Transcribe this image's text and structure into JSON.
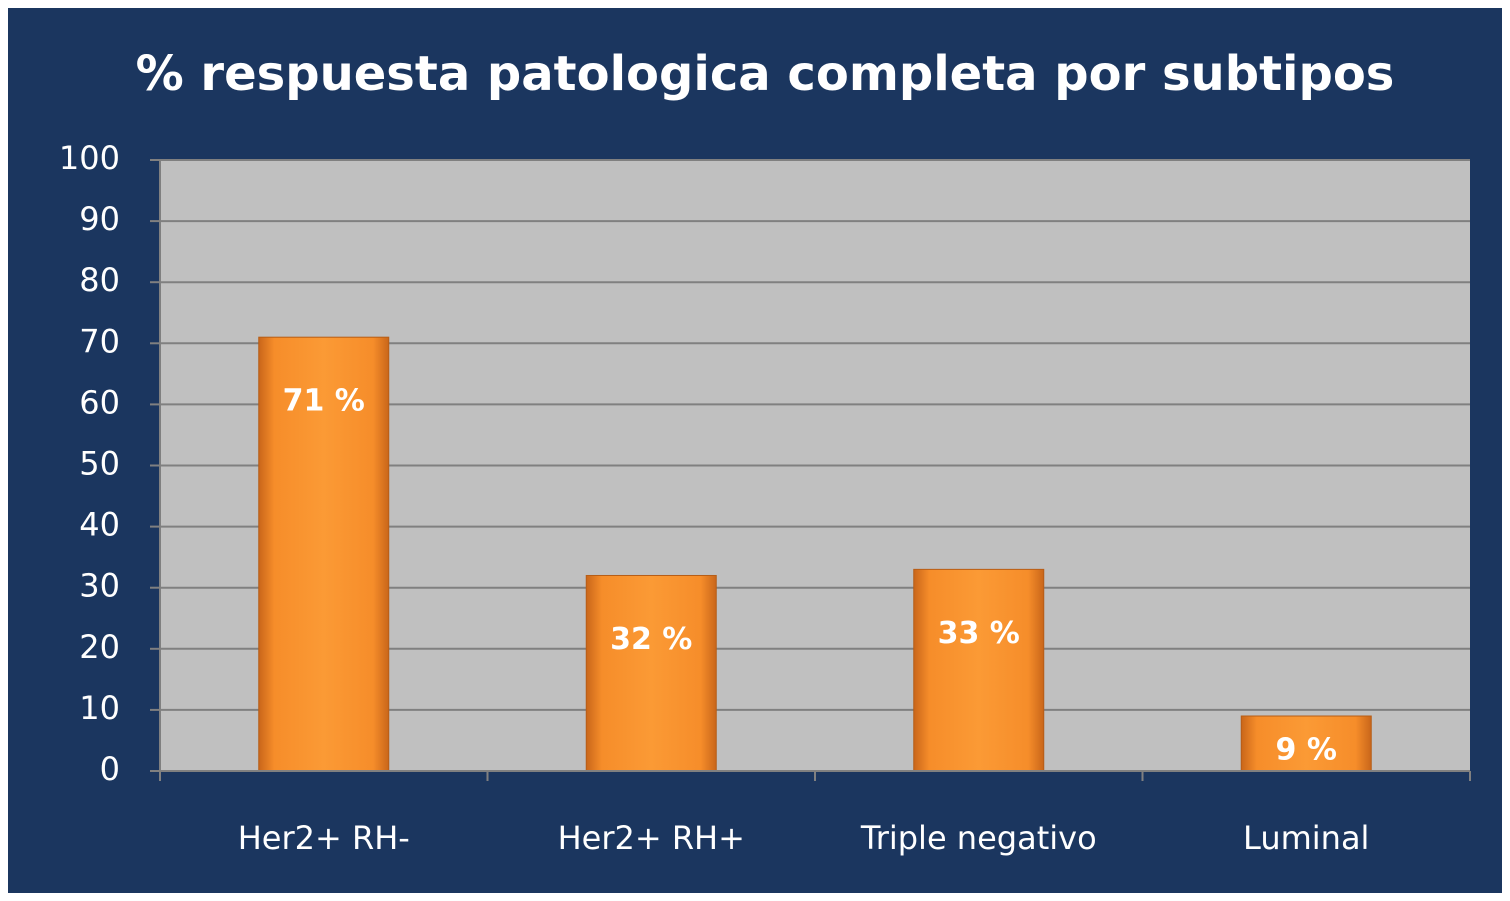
{
  "chart_data": {
    "type": "bar",
    "title": "% respuesta patologica completa por subtipos",
    "categories": [
      "Her2+ RH-",
      "Her2+ RH+",
      "Triple negativo",
      "Luminal"
    ],
    "values": [
      71,
      32,
      33,
      9
    ],
    "value_labels": [
      "71 %",
      "32 %",
      "33 %",
      "9 %"
    ],
    "color": "#f7922e",
    "ylim": [
      0,
      100
    ],
    "yticks": [
      0,
      10,
      20,
      30,
      40,
      50,
      60,
      70,
      80,
      90,
      100
    ],
    "grid": true
  }
}
